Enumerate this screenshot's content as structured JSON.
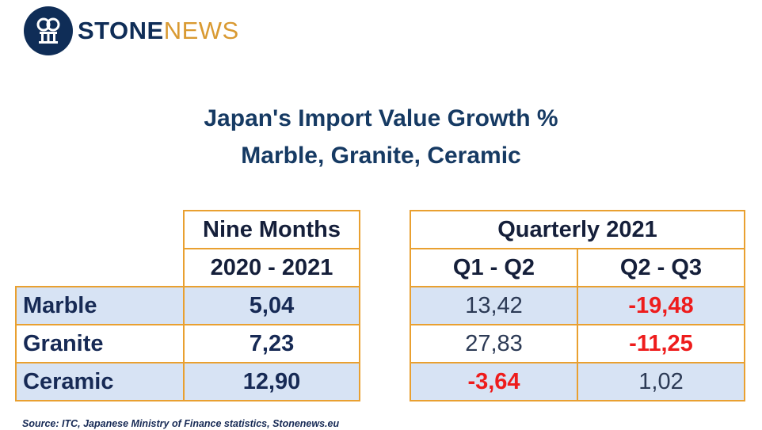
{
  "brand": {
    "stone": "STONE",
    "news": "NEWS",
    "logo_icon": "stonenews-logo-icon"
  },
  "chart_data": {
    "type": "table",
    "title": "Japan's Import Value Growth %",
    "subtitle": "Marble, Granite, Ceramic",
    "left_table": {
      "header_line1": "Nine Months",
      "header_line2": "2020 - 2021",
      "rows": [
        {
          "label": "Marble",
          "value": "5,04"
        },
        {
          "label": "Granite",
          "value": "7,23"
        },
        {
          "label": "Ceramic",
          "value": "12,90"
        }
      ]
    },
    "right_table": {
      "group_header": "Quarterly 2021",
      "columns": [
        "Q1 - Q2",
        "Q2 - Q3"
      ],
      "rows": [
        [
          "13,42",
          "-19,48"
        ],
        [
          "27,83",
          "-11,25"
        ],
        [
          "-3,64",
          "1,02"
        ]
      ]
    },
    "colors": {
      "negative": "#ee1c1c",
      "border": "#e9a030",
      "shade": "#d7e3f4",
      "title": "#163a63"
    }
  },
  "source": "Source: ITC,  Japanese Ministry of Finance statistics, Stonenews.eu"
}
